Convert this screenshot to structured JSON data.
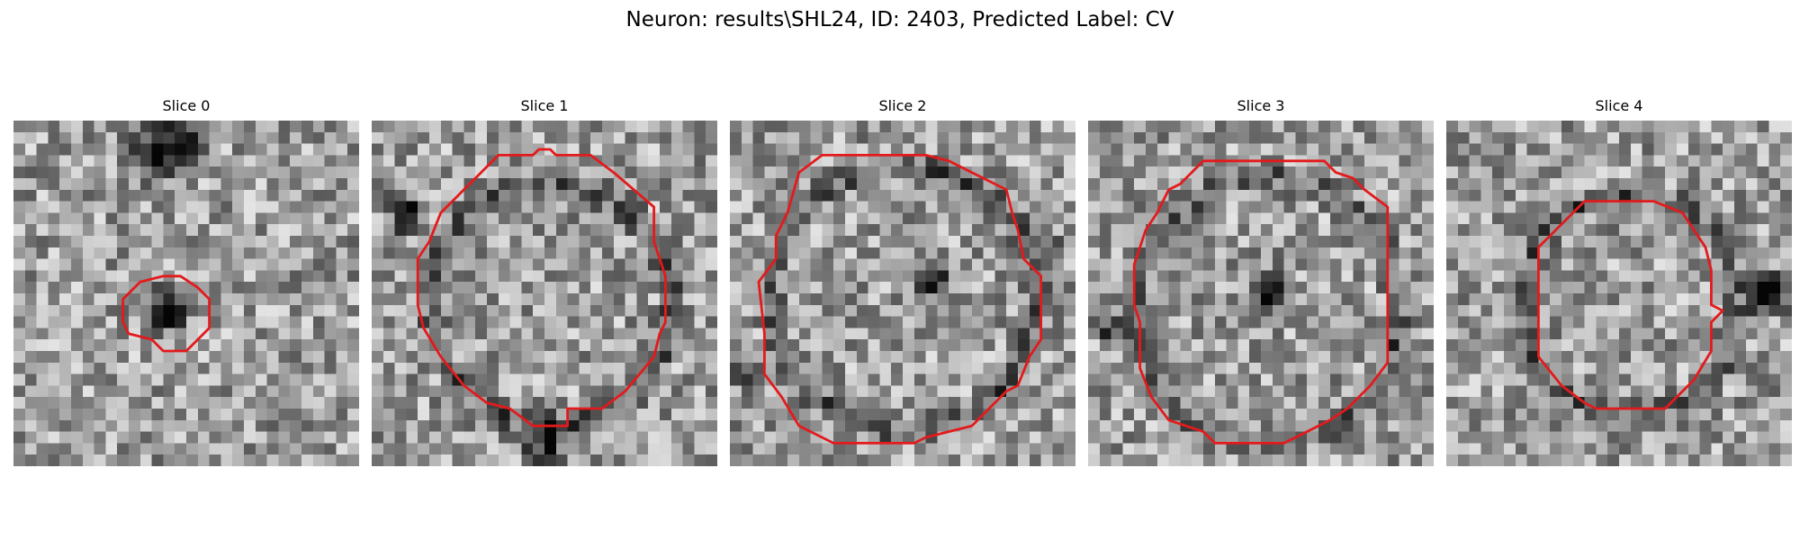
{
  "figure": {
    "title": "Neuron: results\\SHL24, ID: 2403, Predicted Label: CV"
  },
  "contour_color": "#e31a1c",
  "panels": [
    {
      "title": "Slice 0",
      "seed": 11,
      "ring": false,
      "contour": [
        [
          13,
          13.5
        ],
        [
          14.5,
          13.5
        ],
        [
          16,
          14.5
        ],
        [
          17,
          15.5
        ],
        [
          17,
          18
        ],
        [
          16,
          19
        ],
        [
          15,
          20
        ],
        [
          13,
          20
        ],
        [
          12,
          19
        ],
        [
          10,
          18.5
        ],
        [
          9.5,
          17.5
        ],
        [
          9.5,
          15.5
        ],
        [
          11,
          14
        ]
      ],
      "dark_blobs": [
        [
          13.5,
          16.5,
          2.5,
          0.9
        ],
        [
          12.5,
          2.5,
          4,
          0.6
        ],
        [
          14.5,
          1.5,
          3,
          0.4
        ]
      ]
    },
    {
      "title": "Slice 1",
      "seed": 23,
      "ring": true,
      "ring_cx": 15.5,
      "ring_cy": 16,
      "ring_r": 10.5,
      "contour": [
        [
          11,
          3
        ],
        [
          14,
          3
        ],
        [
          14.5,
          2.5
        ],
        [
          15.5,
          2.5
        ],
        [
          16,
          3
        ],
        [
          19,
          3
        ],
        [
          21,
          4.5
        ],
        [
          24.5,
          7.5
        ],
        [
          24.5,
          10.5
        ],
        [
          25,
          12
        ],
        [
          25.5,
          13.5
        ],
        [
          25.5,
          17.5
        ],
        [
          25,
          18.5
        ],
        [
          24.5,
          20.5
        ],
        [
          22,
          23.5
        ],
        [
          20,
          25
        ],
        [
          17,
          25
        ],
        [
          17,
          26.5
        ],
        [
          14,
          26.5
        ],
        [
          12,
          25
        ],
        [
          10,
          24.5
        ],
        [
          8,
          23
        ],
        [
          6,
          20.5
        ],
        [
          4.5,
          18
        ],
        [
          4,
          16
        ],
        [
          4,
          12
        ],
        [
          5,
          10.5
        ],
        [
          6,
          8
        ],
        [
          8,
          6
        ],
        [
          9.5,
          4.5
        ]
      ],
      "dark_blobs": [
        [
          3,
          8,
          2.5,
          0.6
        ],
        [
          15,
          28,
          3,
          0.6
        ]
      ]
    },
    {
      "title": "Slice 2",
      "seed": 37,
      "ring": true,
      "ring_cx": 15.2,
      "ring_cy": 15.5,
      "ring_r": 11.5,
      "contour": [
        [
          8,
          3
        ],
        [
          17,
          3
        ],
        [
          19,
          3.5
        ],
        [
          21,
          4.5
        ],
        [
          22,
          5
        ],
        [
          24,
          6
        ],
        [
          24.5,
          8
        ],
        [
          25,
          9.5
        ],
        [
          25.5,
          12
        ],
        [
          27,
          13.5
        ],
        [
          27,
          19
        ],
        [
          26,
          20.5
        ],
        [
          25,
          23
        ],
        [
          24,
          23.5
        ],
        [
          22,
          25.5
        ],
        [
          21,
          26.5
        ],
        [
          17,
          27.5
        ],
        [
          16,
          28
        ],
        [
          9,
          28
        ],
        [
          6,
          26.5
        ],
        [
          4.5,
          24
        ],
        [
          3,
          22
        ],
        [
          3,
          18.5
        ],
        [
          2.5,
          14
        ],
        [
          4,
          12
        ],
        [
          4,
          10
        ],
        [
          5,
          8
        ],
        [
          6,
          4.5
        ]
      ],
      "dark_blobs": [
        [
          17.5,
          13.5,
          2.5,
          0.7
        ],
        [
          28,
          11,
          1.5,
          0.8
        ],
        [
          1,
          22,
          2,
          0.5
        ]
      ]
    },
    {
      "title": "Slice 3",
      "seed": 53,
      "ring": true,
      "ring_cx": 15.5,
      "ring_cy": 16.5,
      "ring_r": 11.5,
      "contour": [
        [
          10,
          3.5
        ],
        [
          20.5,
          3.5
        ],
        [
          21.5,
          4.5
        ],
        [
          23,
          5
        ],
        [
          24,
          6
        ],
        [
          26,
          7.5
        ],
        [
          26,
          21
        ],
        [
          24.5,
          23
        ],
        [
          22.5,
          25
        ],
        [
          21,
          26
        ],
        [
          19,
          27
        ],
        [
          17,
          28
        ],
        [
          11,
          28
        ],
        [
          10,
          27
        ],
        [
          7,
          26
        ],
        [
          5.5,
          24
        ],
        [
          4.5,
          21.5
        ],
        [
          4.5,
          17.5
        ],
        [
          4,
          16
        ],
        [
          4,
          12.5
        ],
        [
          4.5,
          11
        ],
        [
          5,
          9.5
        ],
        [
          6,
          8
        ],
        [
          7,
          6
        ],
        [
          8,
          5.5
        ]
      ],
      "dark_blobs": [
        [
          16,
          14.5,
          2.5,
          0.8
        ],
        [
          2,
          18,
          2,
          0.5
        ]
      ]
    },
    {
      "title": "Slice 4",
      "seed": 71,
      "ring": true,
      "ring_cx": 15.8,
      "ring_cy": 16,
      "ring_r": 9.5,
      "contour": [
        [
          12,
          7
        ],
        [
          18,
          7
        ],
        [
          20.5,
          8
        ],
        [
          21.5,
          9.5
        ],
        [
          22.5,
          11
        ],
        [
          23,
          13
        ],
        [
          23,
          16
        ],
        [
          24,
          16.5
        ],
        [
          23,
          17.5
        ],
        [
          23,
          20
        ],
        [
          21.5,
          22.5
        ],
        [
          19,
          25
        ],
        [
          13,
          25
        ],
        [
          12,
          24.5
        ],
        [
          10,
          23
        ],
        [
          8,
          20.5
        ],
        [
          8,
          11
        ],
        [
          9.5,
          9.5
        ]
      ],
      "dark_blobs": [
        [
          28,
          15,
          2.5,
          0.8
        ],
        [
          7,
          15,
          2,
          0.6
        ]
      ]
    }
  ]
}
